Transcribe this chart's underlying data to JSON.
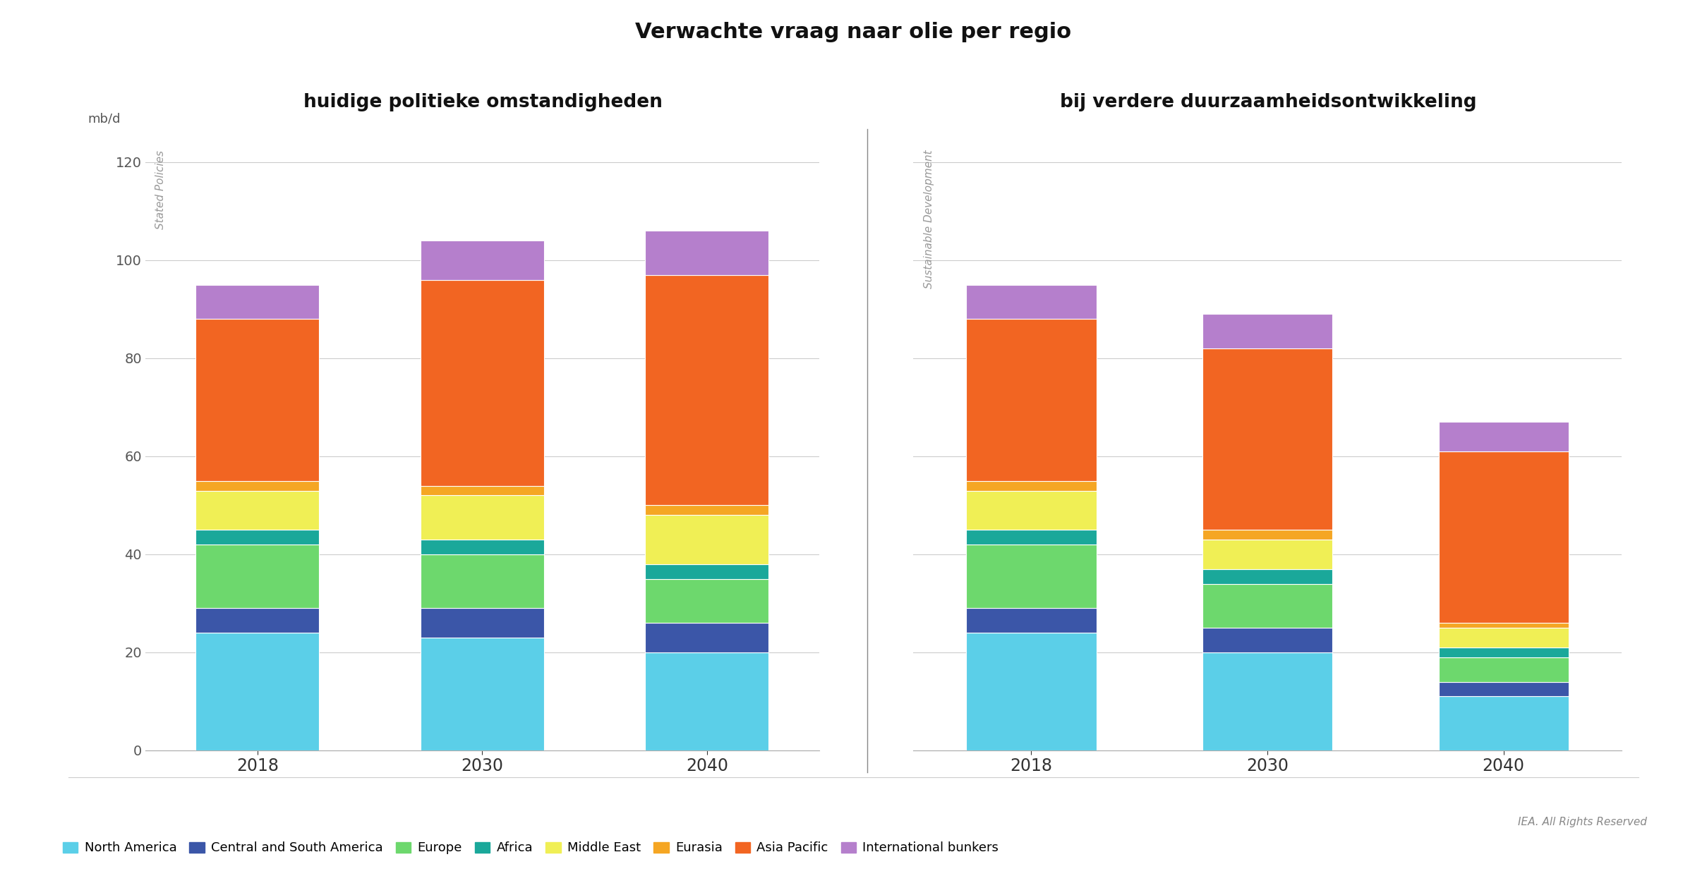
{
  "title": "Verwachte vraag naar olie per regio",
  "ylabel": "mb/d",
  "left_label": "huidige politieke omstandigheden",
  "right_label": "bij verdere duurzaamheidsontwikkeling",
  "left_sublabel": "Stated Policies",
  "right_sublabel": "Sustainable Development",
  "years": [
    "2018",
    "2030",
    "2040"
  ],
  "regions": [
    "North America",
    "Central and South America",
    "Europe",
    "Africa",
    "Middle East",
    "Eurasia",
    "Asia Pacific",
    "International bunkers"
  ],
  "colors": [
    "#5BCFE8",
    "#3B56A8",
    "#6DD86D",
    "#1AA89A",
    "#F0EF55",
    "#F5A623",
    "#F26522",
    "#B57FCC"
  ],
  "stated_policies": {
    "2018": [
      24,
      5,
      13,
      3,
      8,
      2,
      33,
      7
    ],
    "2030": [
      23,
      6,
      11,
      3,
      9,
      2,
      42,
      8
    ],
    "2040": [
      20,
      6,
      9,
      3,
      10,
      2,
      47,
      9
    ]
  },
  "sustainable_development": {
    "2018": [
      24,
      5,
      13,
      3,
      8,
      2,
      33,
      7
    ],
    "2030": [
      20,
      5,
      9,
      3,
      6,
      2,
      37,
      7
    ],
    "2040": [
      11,
      3,
      5,
      2,
      4,
      1,
      35,
      6
    ]
  },
  "ylim": [
    0,
    125
  ],
  "yticks": [
    0,
    20,
    40,
    60,
    80,
    100,
    120
  ],
  "iea_text": "IEA. All Rights Reserved",
  "background_color": "#FFFFFF"
}
